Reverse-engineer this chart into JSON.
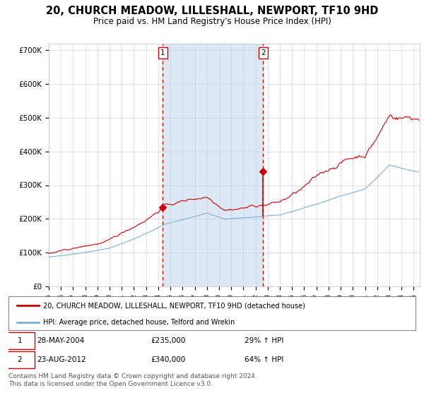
{
  "title": "20, CHURCH MEADOW, LILLESHALL, NEWPORT, TF10 9HD",
  "subtitle": "Price paid vs. HM Land Registry's House Price Index (HPI)",
  "title_fontsize": 10.5,
  "subtitle_fontsize": 8.5,
  "hpi_label": "HPI: Average price, detached house, Telford and Wrekin",
  "property_label": "20, CHURCH MEADOW, LILLESHALL, NEWPORT, TF10 9HD (detached house)",
  "red_color": "#cc0000",
  "blue_color": "#7bafd4",
  "bg_shade_color": "#dce9f5",
  "purchase1_date": 2004.38,
  "purchase1_price": 235000,
  "purchase1_label": "1",
  "purchase2_date": 2012.62,
  "purchase2_price": 340000,
  "purchase2_label": "2",
  "xmin": 1995,
  "xmax": 2025.5,
  "ymin": 0,
  "ymax": 720000,
  "yticks": [
    0,
    100000,
    200000,
    300000,
    400000,
    500000,
    600000,
    700000
  ],
  "ytick_labels": [
    "£0",
    "£100K",
    "£200K",
    "£300K",
    "£400K",
    "£500K",
    "£600K",
    "£700K"
  ],
  "footer": "Contains HM Land Registry data © Crown copyright and database right 2024.\nThis data is licensed under the Open Government Licence v3.0.",
  "footer_fontsize": 6.5,
  "row1_date": "28-MAY-2004",
  "row1_price": "£235,000",
  "row1_hpi": "29% ↑ HPI",
  "row2_date": "23-AUG-2012",
  "row2_price": "£340,000",
  "row2_hpi": "64% ↑ HPI"
}
